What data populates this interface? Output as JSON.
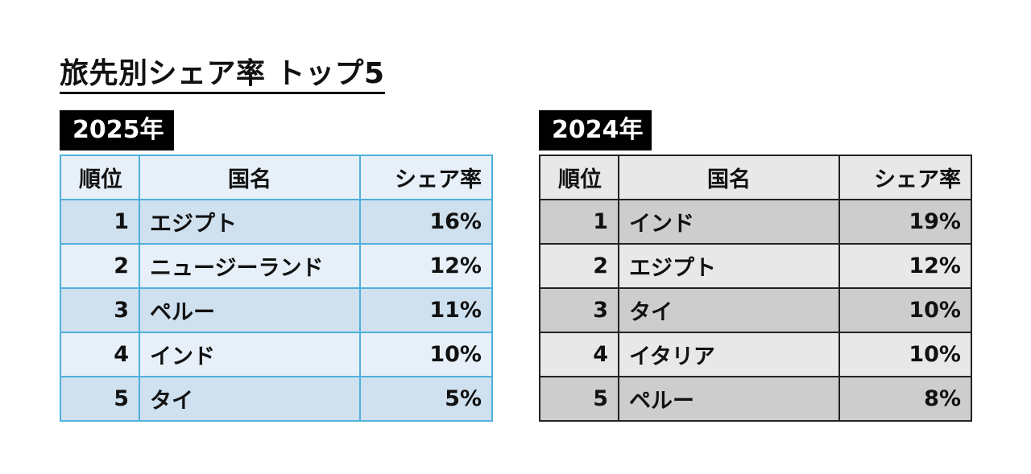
{
  "title": "旅先別シェア率 トップ5",
  "headers": {
    "rank": "順位",
    "country": "国名",
    "share": "シェア率"
  },
  "tables": [
    {
      "year": "2025年",
      "rows": [
        {
          "rank": "1",
          "country": "エジプト",
          "share": "16%"
        },
        {
          "rank": "2",
          "country": "ニュージーランド",
          "share": "12%"
        },
        {
          "rank": "3",
          "country": "ペルー",
          "share": "11%"
        },
        {
          "rank": "4",
          "country": "インド",
          "share": "10%"
        },
        {
          "rank": "5",
          "country": "タイ",
          "share": "5%"
        }
      ]
    },
    {
      "year": "2024年",
      "rows": [
        {
          "rank": "1",
          "country": "インド",
          "share": "19%"
        },
        {
          "rank": "2",
          "country": "エジプト",
          "share": "12%"
        },
        {
          "rank": "3",
          "country": "タイ",
          "share": "10%"
        },
        {
          "rank": "4",
          "country": "イタリア",
          "share": "10%"
        },
        {
          "rank": "5",
          "country": "ペルー",
          "share": "8%"
        }
      ]
    }
  ],
  "colors": {
    "table_2025_border": "#4fb0dc",
    "table_2025_row_dark": "#cfe0ef",
    "table_2025_row_light": "#e7f0f8",
    "table_2024_border": "#222222",
    "table_2024_row_dark": "#cdcdcd",
    "table_2024_row_light": "#e8e8e8",
    "badge_background": "#000000"
  }
}
